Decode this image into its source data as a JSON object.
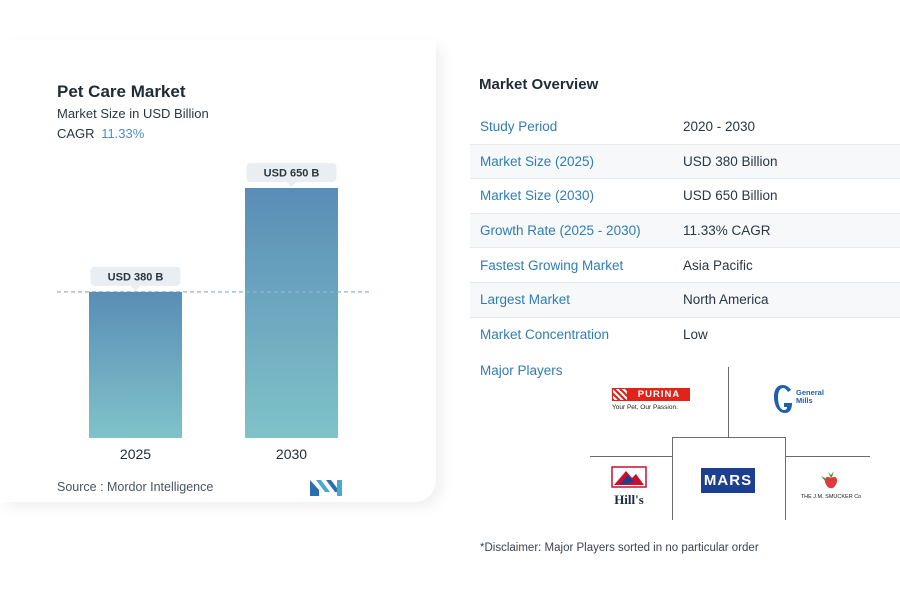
{
  "card": {
    "title": "Pet Care Market",
    "subtitle": "Market Size in USD Billion",
    "cagr_label": "CAGR",
    "cagr_value": "11.33%",
    "source": "Source :  Mordor Intelligence"
  },
  "chart_data": {
    "type": "bar",
    "title": "Pet Care Market",
    "subtitle": "Market Size in USD Billion",
    "categories": [
      "2025",
      "2030"
    ],
    "values": [
      380,
      650
    ],
    "data_labels": [
      "USD 380 B",
      "USD 650 B"
    ],
    "ylim": [
      0,
      650
    ],
    "reference_line": {
      "value": 380,
      "style": "dashed"
    },
    "grid": false,
    "colors": {
      "bar_top": "#5a8db6",
      "bar_bottom": "#7fc3c9",
      "label_bg": "#e9eef2",
      "ref_line": "#8fb7cf"
    }
  },
  "overview": {
    "title": "Market Overview",
    "rows": [
      {
        "key": "Study Period",
        "value": "2020 - 2030"
      },
      {
        "key": "Market Size (2025)",
        "value": "USD 380 Billion"
      },
      {
        "key": "Market Size (2030)",
        "value": "USD 650 Billion"
      },
      {
        "key": "Growth Rate (2025 - 2030)",
        "value": "11.33% CAGR"
      },
      {
        "key": "Fastest Growing Market",
        "value": "Asia Pacific"
      },
      {
        "key": "Largest Market",
        "value": "North America"
      },
      {
        "key": "Market Concentration",
        "value": "Low"
      }
    ],
    "major_players_label": "Major Players",
    "players": {
      "purina": {
        "name": "PURINA",
        "tagline": "Your Pet, Our Passion."
      },
      "general_mills": {
        "line1": "General",
        "line2": "Mills"
      },
      "hills": {
        "name": "Hill's"
      },
      "mars": {
        "name": "MARS"
      },
      "smucker": {
        "name": "THE J.M. SMUCKER Co"
      }
    },
    "disclaimer": "*Disclaimer: Major Players sorted in no particular order"
  },
  "colors": {
    "accent_blue": "#2f7db5",
    "mars_blue": "#1d3f8f",
    "purina_red": "#e2231a",
    "gm_blue": "#1f5fad"
  }
}
